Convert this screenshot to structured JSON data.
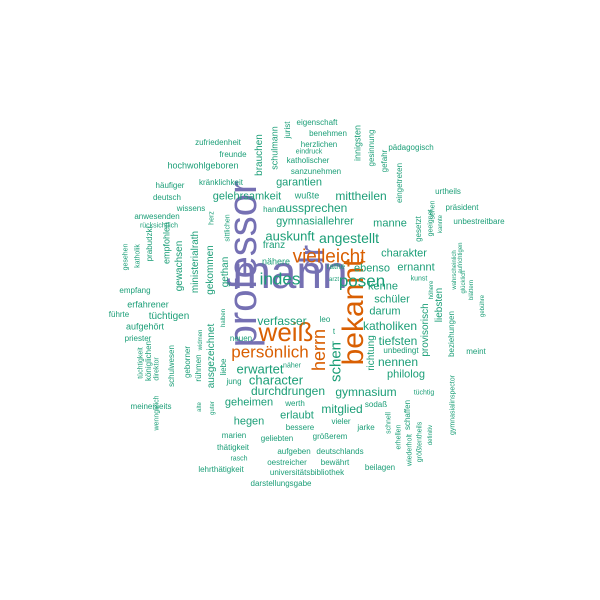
{
  "colors": {
    "purple": "#7570b3",
    "orange": "#d95f02",
    "teal": "#1b9e77"
  },
  "words": [
    {
      "id": "mann",
      "text": "mann",
      "tone": "purple",
      "weight": 1.0,
      "rot": 0
    },
    {
      "id": "professor",
      "text": "professor",
      "tone": "purple",
      "weight": 0.95,
      "rot": 90
    },
    {
      "id": "dr",
      "text": "dr",
      "tone": "purple",
      "weight": 0.75,
      "rot": 90
    },
    {
      "id": "bekannt",
      "text": "bekannt",
      "tone": "orange",
      "weight": 0.7,
      "rot": 90
    },
    {
      "id": "weiss",
      "text": "weiß",
      "tone": "orange",
      "weight": 0.62,
      "rot": 0
    },
    {
      "id": "vielleicht",
      "text": "vielleicht",
      "tone": "orange",
      "weight": 0.55,
      "rot": 0
    },
    {
      "id": "persoenlich",
      "text": "persönlich",
      "tone": "orange",
      "weight": 0.45,
      "rot": 0
    },
    {
      "id": "herrn",
      "text": "herrn",
      "tone": "orange",
      "weight": 0.42,
      "rot": 90
    },
    {
      "id": "posen",
      "text": "posen",
      "tone": "teal",
      "weight": 0.42,
      "rot": 0
    },
    {
      "id": "indes",
      "text": "indes",
      "tone": "teal",
      "weight": 0.4,
      "rot": 0
    },
    {
      "id": "angestellt",
      "text": "angestellt",
      "tone": "teal",
      "weight": 0.35,
      "rot": 0
    },
    {
      "id": "schen",
      "text": "schen",
      "tone": "teal",
      "weight": 0.35,
      "rot": 90
    },
    {
      "id": "auskunft",
      "text": "auskunft",
      "tone": "teal",
      "weight": 0.32,
      "rot": 0
    },
    {
      "id": "erwartet",
      "text": "erwartet",
      "tone": "teal",
      "weight": 0.32,
      "rot": 0
    },
    {
      "id": "character",
      "text": "character",
      "tone": "teal",
      "weight": 0.3,
      "rot": 0
    },
    {
      "id": "verfasser",
      "text": "verfasser",
      "tone": "teal",
      "weight": 0.28,
      "rot": 0
    },
    {
      "id": "katholiken",
      "text": "katholiken",
      "tone": "teal",
      "weight": 0.28,
      "rot": 0
    },
    {
      "id": "gymnasium",
      "text": "gymnasium",
      "tone": "teal",
      "weight": 0.28,
      "rot": 0
    },
    {
      "id": "mitglied",
      "text": "mitglied",
      "tone": "teal",
      "weight": 0.28,
      "rot": 0
    },
    {
      "id": "aussprechen",
      "text": "aussprechen",
      "tone": "teal",
      "weight": 0.28,
      "rot": 0
    },
    {
      "id": "mittheilen",
      "text": "mittheilen",
      "tone": "teal",
      "weight": 0.28,
      "rot": 0
    },
    {
      "id": "tiefsten",
      "text": "tiefsten",
      "tone": "teal",
      "weight": 0.28,
      "rot": 0
    },
    {
      "id": "nennen",
      "text": "nennen",
      "tone": "teal",
      "weight": 0.28,
      "rot": 0
    },
    {
      "id": "kenne",
      "text": "kenne",
      "tone": "teal",
      "weight": 0.26,
      "rot": 0
    },
    {
      "id": "schueler",
      "text": "schüler",
      "tone": "teal",
      "weight": 0.26,
      "rot": 0
    },
    {
      "id": "darum",
      "text": "darum",
      "tone": "teal",
      "weight": 0.26,
      "rot": 0
    },
    {
      "id": "charakter",
      "text": "charakter",
      "tone": "teal",
      "weight": 0.26,
      "rot": 0
    },
    {
      "id": "manne",
      "text": "manne",
      "tone": "teal",
      "weight": 0.26,
      "rot": 0
    },
    {
      "id": "ebenso",
      "text": "ebenso",
      "tone": "teal",
      "weight": 0.24,
      "rot": 0
    },
    {
      "id": "ernannt",
      "text": "ernannt",
      "tone": "teal",
      "weight": 0.24,
      "rot": 0
    },
    {
      "id": "philolog",
      "text": "philolog",
      "tone": "teal",
      "weight": 0.24,
      "rot": 0
    },
    {
      "id": "durchdrungen",
      "text": "durchdrungen",
      "tone": "teal",
      "weight": 0.26,
      "rot": 0
    },
    {
      "id": "geheimen",
      "text": "geheimen",
      "tone": "teal",
      "weight": 0.24,
      "rot": 0
    },
    {
      "id": "hegen",
      "text": "hegen",
      "tone": "teal",
      "weight": 0.24,
      "rot": 0
    },
    {
      "id": "erlaubt",
      "text": "erlaubt",
      "tone": "teal",
      "weight": 0.24,
      "rot": 0
    },
    {
      "id": "gymnasiallehrer",
      "text": "gymnasiallehrer",
      "tone": "teal",
      "weight": 0.24,
      "rot": 0
    },
    {
      "id": "garantien",
      "text": "garantien",
      "tone": "teal",
      "weight": 0.24,
      "rot": 0
    },
    {
      "id": "gelehrsamkeit",
      "text": "gelehrsamkeit",
      "tone": "teal",
      "weight": 0.22,
      "rot": 0
    },
    {
      "id": "tuechtigen",
      "text": "tüchtigen",
      "tone": "teal",
      "weight": 0.22,
      "rot": 0
    },
    {
      "id": "provisorisch",
      "text": "provisorisch",
      "tone": "teal",
      "weight": 0.22,
      "rot": 90
    },
    {
      "id": "richtung",
      "text": "richtung",
      "tone": "teal",
      "weight": 0.22,
      "rot": 90
    },
    {
      "id": "liebsten",
      "text": "liebsten",
      "tone": "teal",
      "weight": 0.2,
      "rot": 90
    },
    {
      "id": "ministerialrath",
      "text": "ministerialrath",
      "tone": "teal",
      "weight": 0.22,
      "rot": 90
    },
    {
      "id": "gekommen",
      "text": "gekommen",
      "tone": "teal",
      "weight": 0.22,
      "rot": 90
    },
    {
      "id": "gewachsen",
      "text": "gewachsen",
      "tone": "teal",
      "weight": 0.22,
      "rot": 90
    },
    {
      "id": "brauchen",
      "text": "brauchen",
      "tone": "teal",
      "weight": 0.22,
      "rot": 90
    },
    {
      "id": "ausgezeichnet",
      "text": "ausgezeichnet",
      "tone": "teal",
      "weight": 0.22,
      "rot": 90
    },
    {
      "id": "gethan",
      "text": "gethan",
      "tone": "teal",
      "weight": 0.2,
      "rot": 90
    },
    {
      "id": "franz",
      "text": "franz",
      "tone": "teal",
      "weight": 0.2,
      "rot": 0
    },
    {
      "id": "naehere",
      "text": "nähere",
      "tone": "teal",
      "weight": 0.18,
      "rot": 0
    },
    {
      "id": "gymnasiallehrer2",
      "text": "gymnasiallehrer",
      "tone": "teal",
      "weight": 0.0,
      "rot": 0,
      "hidden": true
    },
    {
      "id": "schulmann",
      "text": "schulmann",
      "tone": "teal",
      "weight": 0.18,
      "rot": 90
    },
    {
      "id": "jurist",
      "text": "jurist",
      "tone": "teal",
      "weight": 0.16,
      "rot": 90
    },
    {
      "id": "innigsten",
      "text": "innigsten",
      "tone": "teal",
      "weight": 0.16,
      "rot": 90
    },
    {
      "id": "gesinnung",
      "text": "gesinnung",
      "tone": "teal",
      "weight": 0.15,
      "rot": 90
    },
    {
      "id": "gefahr",
      "text": "gefahr",
      "tone": "teal",
      "weight": 0.14,
      "rot": 90
    },
    {
      "id": "eigenschaft",
      "text": "eigenschaft",
      "tone": "teal",
      "weight": 0.15,
      "rot": 0
    },
    {
      "id": "benehmen",
      "text": "benehmen",
      "tone": "teal",
      "weight": 0.15,
      "rot": 0
    },
    {
      "id": "herzlichen",
      "text": "herzlichen",
      "tone": "teal",
      "weight": 0.16,
      "rot": 0
    },
    {
      "id": "eindruck",
      "text": "eindruck",
      "tone": "teal",
      "weight": 0.14,
      "rot": 0
    },
    {
      "id": "katholischer",
      "text": "katholischer",
      "tone": "teal",
      "weight": 0.16,
      "rot": 0
    },
    {
      "id": "sanzunehmen",
      "text": "sanzunehmen",
      "tone": "teal",
      "weight": 0.16,
      "rot": 0
    },
    {
      "id": "paedagogisch",
      "text": "pädagogisch",
      "tone": "teal",
      "weight": 0.15,
      "rot": 0
    },
    {
      "id": "zufriedenheit",
      "text": "zufriedenheit",
      "tone": "teal",
      "weight": 0.16,
      "rot": 0
    },
    {
      "id": "freunde",
      "text": "freunde",
      "tone": "teal",
      "weight": 0.15,
      "rot": 0
    },
    {
      "id": "hochwohlgeboren",
      "text": "hochwohlgeboren",
      "tone": "teal",
      "weight": 0.18,
      "rot": 0
    },
    {
      "id": "haeufiger",
      "text": "häufiger",
      "tone": "teal",
      "weight": 0.16,
      "rot": 0
    },
    {
      "id": "kraenklichkeit",
      "text": "kränklichkeit",
      "tone": "teal",
      "weight": 0.16,
      "rot": 0
    },
    {
      "id": "deutsch",
      "text": "deutsch",
      "tone": "teal",
      "weight": 0.15,
      "rot": 0
    },
    {
      "id": "wissens",
      "text": "wissens",
      "tone": "teal",
      "weight": 0.16,
      "rot": 0
    },
    {
      "id": "wusste",
      "text": "wußte",
      "tone": "teal",
      "weight": 0.18,
      "rot": 0
    },
    {
      "id": "hand",
      "text": "hand",
      "tone": "teal",
      "weight": 0.15,
      "rot": 0
    },
    {
      "id": "eingetreten",
      "text": "eingetreten",
      "tone": "teal",
      "weight": 0.16,
      "rot": 90
    },
    {
      "id": "urtheils",
      "text": "urtheils",
      "tone": "teal",
      "weight": 0.15,
      "rot": 0
    },
    {
      "id": "praesident",
      "text": "präsident",
      "tone": "teal",
      "weight": 0.15,
      "rot": 0
    },
    {
      "id": "unbestreitbare",
      "text": "unbestreitbare",
      "tone": "teal",
      "weight": 0.15,
      "rot": 0
    },
    {
      "id": "anwesenden",
      "text": "anwesenden",
      "tone": "teal",
      "weight": 0.15,
      "rot": 0
    },
    {
      "id": "ruecksichtlich",
      "text": "rücksichtlich",
      "tone": "teal",
      "weight": 0.14,
      "rot": 0
    },
    {
      "id": "empfohlen",
      "text": "empfohlen",
      "tone": "teal",
      "weight": 0.17,
      "rot": 90
    },
    {
      "id": "praebudzki",
      "text": "prabudzki",
      "tone": "teal",
      "weight": 0.15,
      "rot": 90
    },
    {
      "id": "katholik",
      "text": "katholik",
      "tone": "teal",
      "weight": 0.14,
      "rot": 90
    },
    {
      "id": "gesehen",
      "text": "gesehen",
      "tone": "teal",
      "weight": 0.14,
      "rot": 90
    },
    {
      "id": "herz",
      "text": "herz",
      "tone": "teal",
      "weight": 0.13,
      "rot": 90
    },
    {
      "id": "sittlichen",
      "text": "sittlichen",
      "tone": "teal",
      "weight": 0.14,
      "rot": 90
    },
    {
      "id": "rathe",
      "text": "rathe",
      "tone": "teal",
      "weight": 0.14,
      "rot": 0
    },
    {
      "id": "arzt",
      "text": "arzt",
      "tone": "teal",
      "weight": 0.12,
      "rot": 0
    },
    {
      "id": "empfang",
      "text": "empfang",
      "tone": "teal",
      "weight": 0.14,
      "rot": 0
    },
    {
      "id": "erfahrener",
      "text": "erfahrener",
      "tone": "teal",
      "weight": 0.16,
      "rot": 0
    },
    {
      "id": "fuehrte",
      "text": "führte",
      "tone": "teal",
      "weight": 0.14,
      "rot": 0
    },
    {
      "id": "aufgehoert",
      "text": "aufgehört",
      "tone": "teal",
      "weight": 0.16,
      "rot": 0
    },
    {
      "id": "priester",
      "text": "priester",
      "tone": "teal",
      "weight": 0.15,
      "rot": 0
    },
    {
      "id": "leo",
      "text": "leo",
      "tone": "teal",
      "weight": 0.14,
      "rot": 0
    },
    {
      "id": "halben",
      "text": "halben",
      "tone": "teal",
      "weight": 0.12,
      "rot": 90
    },
    {
      "id": "widmen",
      "text": "widmen",
      "tone": "teal",
      "weight": 0.12,
      "rot": 90
    },
    {
      "id": "neuen",
      "text": "neuen",
      "tone": "teal",
      "weight": 0.14,
      "rot": 0
    },
    {
      "id": "unbedingt",
      "text": "unbedingt",
      "tone": "teal",
      "weight": 0.14,
      "rot": 0
    },
    {
      "id": "koeniglichen",
      "text": "königlichen",
      "tone": "teal",
      "weight": 0.16,
      "rot": 90
    },
    {
      "id": "schulwesen",
      "text": "schulwesen",
      "tone": "teal",
      "weight": 0.16,
      "rot": 90
    },
    {
      "id": "geborner",
      "text": "geborner",
      "tone": "teal",
      "weight": 0.16,
      "rot": 90
    },
    {
      "id": "ruhmen",
      "text": "rühmen",
      "tone": "teal",
      "weight": 0.15,
      "rot": 90
    },
    {
      "id": "liebe",
      "text": "liebe",
      "tone": "teal",
      "weight": 0.14,
      "rot": 90
    },
    {
      "id": "jung",
      "text": "jung",
      "tone": "teal",
      "weight": 0.14,
      "rot": 0
    },
    {
      "id": "naeher",
      "text": "näher",
      "tone": "teal",
      "weight": 0.13,
      "rot": 0
    },
    {
      "id": "werth",
      "text": "werth",
      "tone": "teal",
      "weight": 0.14,
      "rot": 0
    },
    {
      "id": "tuechtigkeit",
      "text": "tüchtigkeit",
      "tone": "teal",
      "weight": 0.14,
      "rot": 90
    },
    {
      "id": "direktor",
      "text": "direktor",
      "tone": "teal",
      "weight": 0.14,
      "rot": 90
    },
    {
      "id": "wenngleich",
      "text": "wenngleich",
      "tone": "teal",
      "weight": 0.14,
      "rot": 90
    },
    {
      "id": "meinerseits",
      "text": "meinerseits",
      "tone": "teal",
      "weight": 0.15,
      "rot": 0
    },
    {
      "id": "alte",
      "text": "alte",
      "tone": "teal",
      "weight": 0.12,
      "rot": 90
    },
    {
      "id": "guter",
      "text": "guter",
      "tone": "teal",
      "weight": 0.13,
      "rot": 90
    },
    {
      "id": "marien",
      "text": "marien",
      "tone": "teal",
      "weight": 0.15,
      "rot": 0
    },
    {
      "id": "thaetigkeit",
      "text": "thätigkeit",
      "tone": "teal",
      "weight": 0.14,
      "rot": 0
    },
    {
      "id": "rasch",
      "text": "rasch",
      "tone": "teal",
      "weight": 0.13,
      "rot": 0
    },
    {
      "id": "lehrthaetigkeit",
      "text": "lehrthätigkeit",
      "tone": "teal",
      "weight": 0.15,
      "rot": 0
    },
    {
      "id": "geliebten",
      "text": "geliebten",
      "tone": "teal",
      "weight": 0.14,
      "rot": 0
    },
    {
      "id": "groesserem",
      "text": "größerem",
      "tone": "teal",
      "weight": 0.15,
      "rot": 0
    },
    {
      "id": "bessere",
      "text": "bessere",
      "tone": "teal",
      "weight": 0.15,
      "rot": 0
    },
    {
      "id": "vieler",
      "text": "vieler",
      "tone": "teal",
      "weight": 0.14,
      "rot": 0
    },
    {
      "id": "jarke",
      "text": "jarke",
      "tone": "teal",
      "weight": 0.14,
      "rot": 0
    },
    {
      "id": "sodass",
      "text": "sodaß",
      "tone": "teal",
      "weight": 0.14,
      "rot": 0
    },
    {
      "id": "aufgeben",
      "text": "aufgeben",
      "tone": "teal",
      "weight": 0.15,
      "rot": 0
    },
    {
      "id": "deutschlands",
      "text": "deutschlands",
      "tone": "teal",
      "weight": 0.15,
      "rot": 0
    },
    {
      "id": "oestreicher",
      "text": "oestreicher",
      "tone": "teal",
      "weight": 0.15,
      "rot": 0
    },
    {
      "id": "bewaehrt",
      "text": "bewährt",
      "tone": "teal",
      "weight": 0.14,
      "rot": 0
    },
    {
      "id": "universitaetsbibliothek",
      "text": "universitätsbibliothek",
      "tone": "teal",
      "weight": 0.15,
      "rot": 0
    },
    {
      "id": "beilagen",
      "text": "beilagen",
      "tone": "teal",
      "weight": 0.15,
      "rot": 0
    },
    {
      "id": "darstellungsgabe",
      "text": "darstellungsgabe",
      "tone": "teal",
      "weight": 0.15,
      "rot": 0
    },
    {
      "id": "tuechtig",
      "text": "tüchtig",
      "tone": "teal",
      "weight": 0.13,
      "rot": 0
    },
    {
      "id": "schnell",
      "text": "schnell",
      "tone": "teal",
      "weight": 0.13,
      "rot": 90
    },
    {
      "id": "schaffen",
      "text": "schaffen",
      "tone": "teal",
      "weight": 0.14,
      "rot": 90
    },
    {
      "id": "erhellen",
      "text": "erhellen",
      "tone": "teal",
      "weight": 0.13,
      "rot": 90
    },
    {
      "id": "wiederholt",
      "text": "wiederholt",
      "tone": "teal",
      "weight": 0.13,
      "rot": 90
    },
    {
      "id": "groesstentheils",
      "text": "größtentheils",
      "tone": "teal",
      "weight": 0.13,
      "rot": 90
    },
    {
      "id": "definitiv",
      "text": "definitiv",
      "tone": "teal",
      "weight": 0.12,
      "rot": 90
    },
    {
      "id": "gymnasialinspector",
      "text": "gymnasialinspector",
      "tone": "teal",
      "weight": 0.13,
      "rot": 90
    },
    {
      "id": "beziehungen",
      "text": "beziehungen",
      "tone": "teal",
      "weight": 0.15,
      "rot": 90
    },
    {
      "id": "meint",
      "text": "meint",
      "tone": "teal",
      "weight": 0.14,
      "rot": 0
    },
    {
      "id": "gebuehre",
      "text": "gebühre",
      "tone": "teal",
      "weight": 0.12,
      "rot": 90
    },
    {
      "id": "blaettern",
      "text": "blättern",
      "tone": "teal",
      "weight": 0.12,
      "rot": 90
    },
    {
      "id": "gluecklich",
      "text": "glücklich",
      "tone": "teal",
      "weight": 0.12,
      "rot": 90
    },
    {
      "id": "wahrscheinlich",
      "text": "wahrscheinlich",
      "tone": "teal",
      "weight": 0.12,
      "rot": 90
    },
    {
      "id": "hoehere",
      "text": "höhere",
      "tone": "teal",
      "weight": 0.12,
      "rot": 90
    },
    {
      "id": "gesetzt",
      "text": "gesetzt",
      "tone": "teal",
      "weight": 0.14,
      "rot": 90
    },
    {
      "id": "geeignet",
      "text": "geeignet",
      "tone": "teal",
      "weight": 0.13,
      "rot": 90
    },
    {
      "id": "sehen",
      "text": "sehen",
      "tone": "teal",
      "weight": 0.13,
      "rot": 90
    },
    {
      "id": "kannte",
      "text": "kannte",
      "tone": "teal",
      "weight": 0.12,
      "rot": 90
    },
    {
      "id": "aufrichtigen",
      "text": "aufrichtigen",
      "tone": "teal",
      "weight": 0.12,
      "rot": 90
    },
    {
      "id": "kunst",
      "text": "kunst",
      "tone": "teal",
      "weight": 0.12,
      "rot": 0
    },
    {
      "id": "t",
      "text": "t",
      "tone": "teal",
      "weight": 0.13,
      "rot": 0
    },
    {
      "id": "l",
      "text": "l",
      "tone": "teal",
      "weight": 0.13,
      "rot": 0
    }
  ]
}
